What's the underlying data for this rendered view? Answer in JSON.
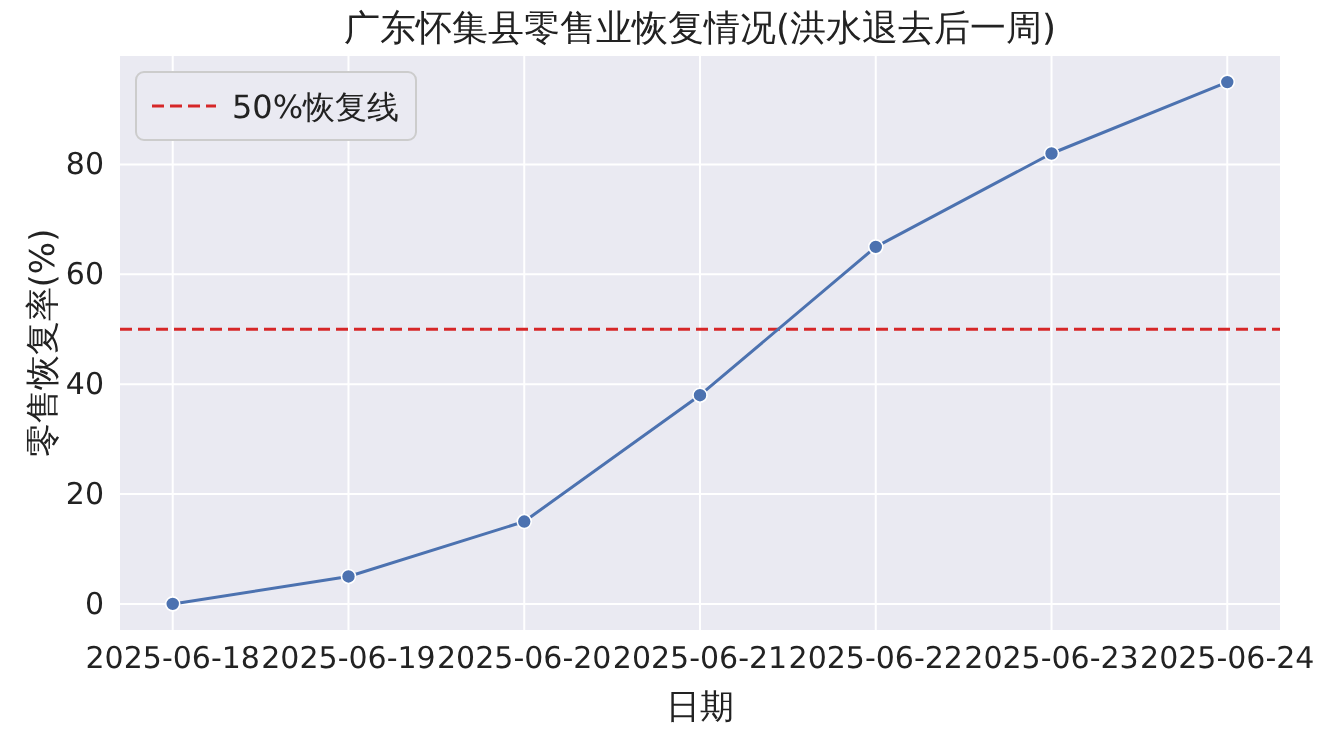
{
  "chart_data": {
    "type": "line",
    "title": "广东怀集县零售业恢复情况(洪水退去后一周)",
    "xlabel": "日期",
    "ylabel": "零售恢复率(%)",
    "categories": [
      "2025-06-18",
      "2025-06-19",
      "2025-06-20",
      "2025-06-21",
      "2025-06-22",
      "2025-06-23",
      "2025-06-24"
    ],
    "series": [
      {
        "color": "#4c72b0",
        "values": [
          0,
          5,
          15,
          38,
          65,
          82,
          95
        ]
      }
    ],
    "ylim": [
      -4.75,
      99.75
    ],
    "yticks": [
      0,
      20,
      40,
      60,
      80
    ],
    "ref_lines": [
      {
        "axis": "y",
        "value": 50,
        "label": "50%恢复线",
        "color": "#d62728",
        "line_style": "dashed"
      }
    ],
    "grid": true,
    "legend": "top left",
    "marker": "circle",
    "line_style": "solid"
  }
}
